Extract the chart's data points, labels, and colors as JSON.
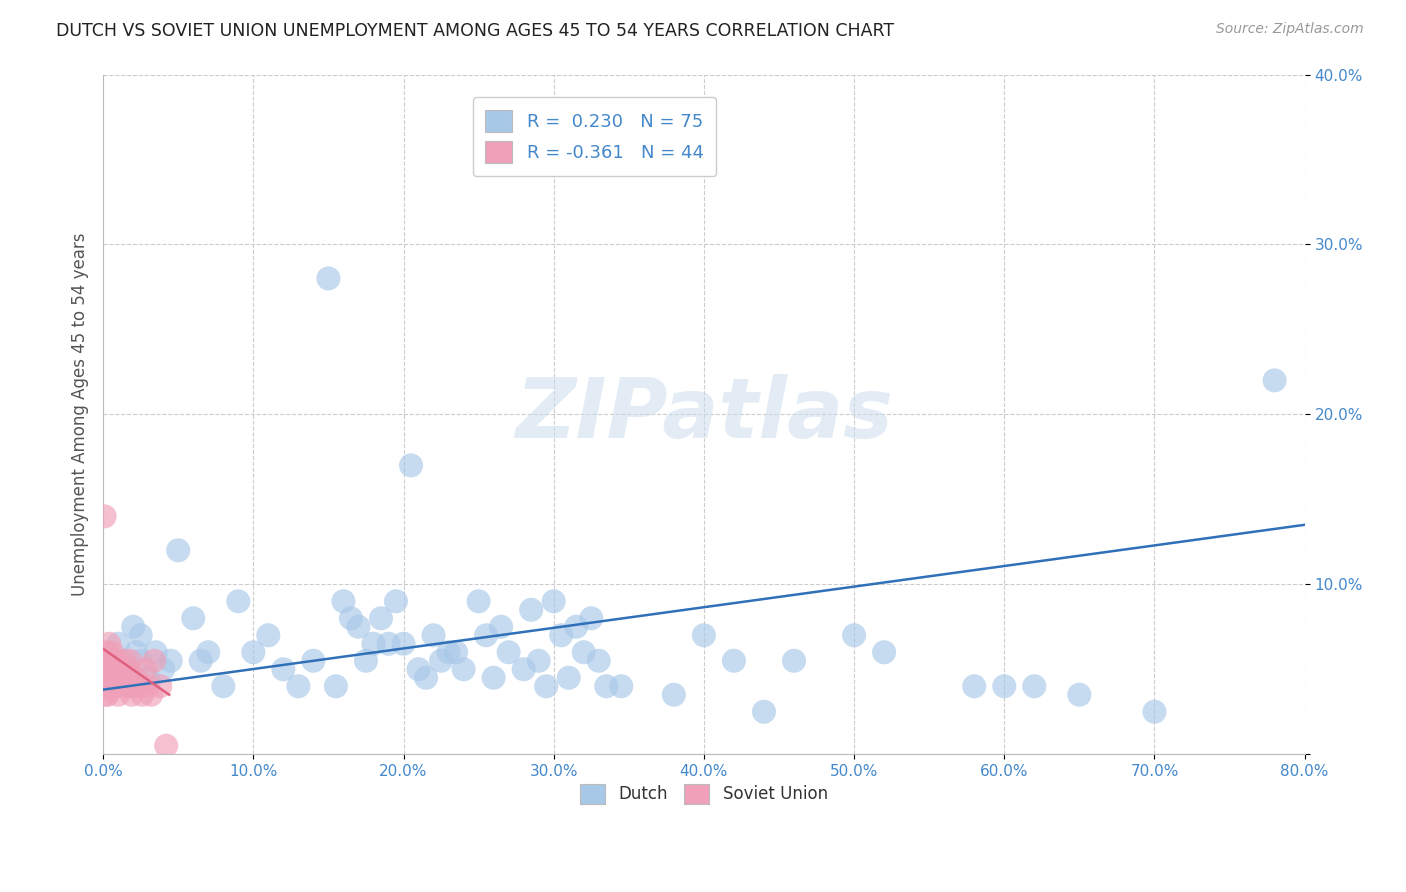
{
  "title": "DUTCH VS SOVIET UNION UNEMPLOYMENT AMONG AGES 45 TO 54 YEARS CORRELATION CHART",
  "source": "Source: ZipAtlas.com",
  "ylabel": "Unemployment Among Ages 45 to 54 years",
  "xlim": [
    0,
    0.8
  ],
  "ylim": [
    0,
    0.4
  ],
  "xticks": [
    0.0,
    0.1,
    0.2,
    0.3,
    0.4,
    0.5,
    0.6,
    0.7,
    0.8
  ],
  "yticks": [
    0.0,
    0.1,
    0.2,
    0.3,
    0.4
  ],
  "xtick_labels": [
    "0.0%",
    "10.0%",
    "20.0%",
    "30.0%",
    "40.0%",
    "50.0%",
    "60.0%",
    "70.0%",
    "80.0%"
  ],
  "ytick_labels": [
    "",
    "10.0%",
    "20.0%",
    "30.0%",
    "40.0%"
  ],
  "dutch_color": "#a8c8e8",
  "soviet_color": "#f0a0b8",
  "trend_dutch_color": "#3070b8",
  "trend_soviet_color": "#e06080",
  "dutch_R": 0.23,
  "dutch_N": 75,
  "soviet_R": -0.361,
  "soviet_N": 44,
  "legend_dutch_label": "Dutch",
  "legend_soviet_label": "Soviet Union",
  "background_color": "#ffffff",
  "dutch_trend_x0": 0.0,
  "dutch_trend_y0": 0.038,
  "dutch_trend_x1": 0.8,
  "dutch_trend_y1": 0.135,
  "soviet_trend_x0": 0.0,
  "soviet_trend_y0": 0.062,
  "soviet_trend_x1": 0.044,
  "soviet_trend_y1": 0.035,
  "dutch_x": [
    0.005,
    0.008,
    0.01,
    0.012,
    0.015,
    0.018,
    0.02,
    0.022,
    0.025,
    0.025,
    0.03,
    0.035,
    0.04,
    0.045,
    0.05,
    0.06,
    0.065,
    0.07,
    0.08,
    0.09,
    0.1,
    0.11,
    0.12,
    0.13,
    0.14,
    0.15,
    0.155,
    0.16,
    0.165,
    0.17,
    0.175,
    0.18,
    0.185,
    0.19,
    0.195,
    0.2,
    0.205,
    0.21,
    0.215,
    0.22,
    0.225,
    0.23,
    0.235,
    0.24,
    0.25,
    0.255,
    0.26,
    0.265,
    0.27,
    0.28,
    0.285,
    0.29,
    0.295,
    0.3,
    0.305,
    0.31,
    0.315,
    0.32,
    0.325,
    0.33,
    0.335,
    0.345,
    0.38,
    0.4,
    0.42,
    0.44,
    0.46,
    0.5,
    0.52,
    0.58,
    0.6,
    0.62,
    0.65,
    0.7,
    0.78
  ],
  "dutch_y": [
    0.055,
    0.045,
    0.065,
    0.055,
    0.05,
    0.04,
    0.075,
    0.06,
    0.055,
    0.07,
    0.045,
    0.06,
    0.05,
    0.055,
    0.12,
    0.08,
    0.055,
    0.06,
    0.04,
    0.09,
    0.06,
    0.07,
    0.05,
    0.04,
    0.055,
    0.28,
    0.04,
    0.09,
    0.08,
    0.075,
    0.055,
    0.065,
    0.08,
    0.065,
    0.09,
    0.065,
    0.17,
    0.05,
    0.045,
    0.07,
    0.055,
    0.06,
    0.06,
    0.05,
    0.09,
    0.07,
    0.045,
    0.075,
    0.06,
    0.05,
    0.085,
    0.055,
    0.04,
    0.09,
    0.07,
    0.045,
    0.075,
    0.06,
    0.08,
    0.055,
    0.04,
    0.04,
    0.035,
    0.07,
    0.055,
    0.025,
    0.055,
    0.07,
    0.06,
    0.04,
    0.04,
    0.04,
    0.035,
    0.025,
    0.22
  ],
  "soviet_x": [
    0.001,
    0.001,
    0.001,
    0.0015,
    0.002,
    0.002,
    0.002,
    0.003,
    0.003,
    0.003,
    0.004,
    0.004,
    0.004,
    0.005,
    0.005,
    0.006,
    0.006,
    0.007,
    0.007,
    0.008,
    0.008,
    0.009,
    0.009,
    0.01,
    0.01,
    0.011,
    0.012,
    0.013,
    0.014,
    0.015,
    0.016,
    0.017,
    0.018,
    0.019,
    0.02,
    0.022,
    0.024,
    0.026,
    0.028,
    0.03,
    0.032,
    0.034,
    0.038,
    0.042
  ],
  "soviet_y": [
    0.055,
    0.045,
    0.04,
    0.05,
    0.06,
    0.045,
    0.035,
    0.055,
    0.04,
    0.035,
    0.065,
    0.05,
    0.04,
    0.055,
    0.045,
    0.06,
    0.05,
    0.055,
    0.04,
    0.05,
    0.045,
    0.055,
    0.04,
    0.045,
    0.035,
    0.05,
    0.045,
    0.04,
    0.055,
    0.045,
    0.04,
    0.05,
    0.055,
    0.035,
    0.04,
    0.045,
    0.04,
    0.035,
    0.05,
    0.04,
    0.035,
    0.055,
    0.04,
    0.005
  ],
  "soviet_outlier_x": [
    0.001
  ],
  "soviet_outlier_y": [
    0.14
  ]
}
